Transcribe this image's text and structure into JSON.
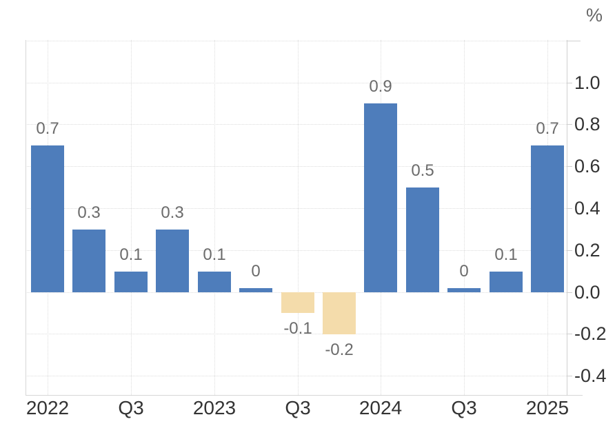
{
  "chart_data": {
    "type": "bar",
    "title": "",
    "unit_label": "%",
    "values": [
      0.7,
      0.3,
      0.1,
      0.3,
      0.1,
      0,
      -0.1,
      -0.2,
      0.9,
      0.5,
      0,
      0.1,
      0.7
    ],
    "bar_value_labels": [
      "0.7",
      "0.3",
      "0.1",
      "0.3",
      "0.1",
      "0",
      "-0.1",
      "-0.2",
      "0.9",
      "0.5",
      "0",
      "0.1",
      "0.7"
    ],
    "x_tick_labels": [
      "2022",
      "Q3",
      "2023",
      "Q3",
      "2024",
      "Q3",
      "2025"
    ],
    "x_tick_bar_indices": [
      0,
      2,
      4,
      6,
      8,
      10,
      12
    ],
    "y_tick_labels": [
      "1.0",
      "0.8",
      "0.6",
      "0.4",
      "0.2",
      "0.0",
      "-0.2",
      "-0.4"
    ],
    "y_tick_values": [
      1.0,
      0.8,
      0.6,
      0.4,
      0.2,
      0.0,
      -0.2,
      -0.4
    ],
    "ylim": [
      -0.5,
      1.2
    ],
    "gridline_values": [
      1.2,
      1.0,
      0.8,
      0.6,
      0.4,
      0.2,
      0.0,
      -0.2,
      -0.4
    ],
    "grid": true,
    "legend": "none",
    "colors": {
      "positive_bar": "#4e7dbb",
      "negative_bar": "#f4dcab",
      "value_label": "#6b6b6b",
      "axis_label": "#333333",
      "gridline": "#dcdcdc",
      "axis_line": "#cfcfcf",
      "background": "#ffffff"
    }
  }
}
